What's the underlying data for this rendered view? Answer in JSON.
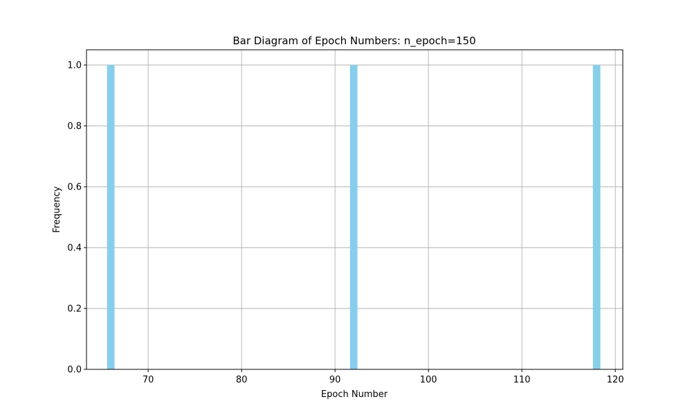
{
  "chart_data": {
    "type": "bar",
    "title": "Bar Diagram of Epoch Numbers: n_epoch=150",
    "xlabel": "Epoch Number",
    "ylabel": "Frequency",
    "x": [
      66,
      92,
      118
    ],
    "values": [
      1.0,
      1.0,
      1.0
    ],
    "bar_width": 0.8,
    "xlim": [
      63.4,
      120.8
    ],
    "ylim": [
      0.0,
      1.05
    ],
    "xticks": [
      70,
      80,
      90,
      100,
      110,
      120
    ],
    "xtick_labels": [
      "70",
      "80",
      "90",
      "100",
      "110",
      "120"
    ],
    "yticks": [
      0.0,
      0.2,
      0.4,
      0.6,
      0.8,
      1.0
    ],
    "ytick_labels": [
      "0.0",
      "0.2",
      "0.4",
      "0.6",
      "0.8",
      "1.0"
    ],
    "grid": true,
    "bar_color": "#87CEEB",
    "grid_color": "#b0b0b0"
  }
}
